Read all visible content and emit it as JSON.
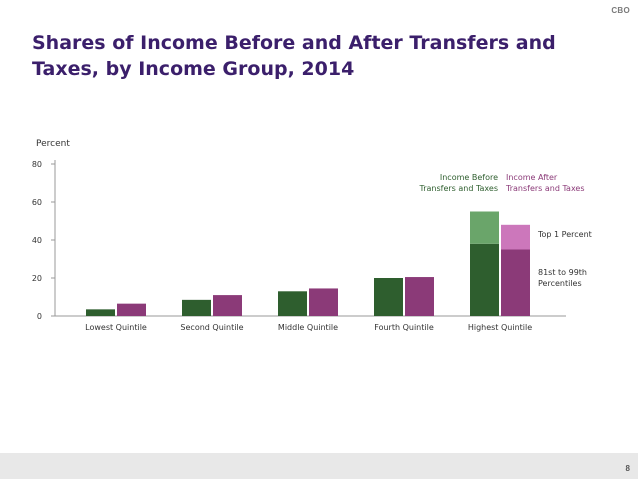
{
  "brand": "CBO",
  "title": "Shares of Income Before and After Transfers and Taxes, by Income Group, 2014",
  "page_number": "8",
  "colors": {
    "before_top": "#6aa56a",
    "before_main": "#2e5e2e",
    "after_top": "#cc77bb",
    "after_main": "#8b3a78"
  },
  "chart_data": {
    "type": "bar",
    "ylabel": "Percent",
    "ylim": [
      0,
      80
    ],
    "yticks": [
      0,
      20,
      40,
      60,
      80
    ],
    "categories": [
      "Lowest Quintile",
      "Second Quintile",
      "Middle Quintile",
      "Fourth Quintile",
      "Highest Quintile"
    ],
    "series": [
      {
        "name": "Income Before Transfers and Taxes",
        "values": [
          3.5,
          8.5,
          13,
          20,
          55
        ]
      },
      {
        "name": "Income After Transfers and Taxes",
        "values": [
          6.5,
          11,
          14.5,
          20.5,
          48
        ]
      }
    ],
    "highest_quintile_breakdown": {
      "before": {
        "top_1_percent": 17,
        "81st_to_99th_percentiles": 38
      },
      "after": {
        "top_1_percent": 13,
        "81st_to_99th_percentiles": 35
      }
    },
    "legend": {
      "before": [
        "Income Before",
        "Transfers and Taxes"
      ],
      "after": [
        "Income After",
        "Transfers and Taxes"
      ]
    },
    "annotations": {
      "top_1_percent": [
        "Top 1 Percent"
      ],
      "percentiles_81_99": [
        "81st to 99th",
        "Percentiles"
      ]
    }
  }
}
